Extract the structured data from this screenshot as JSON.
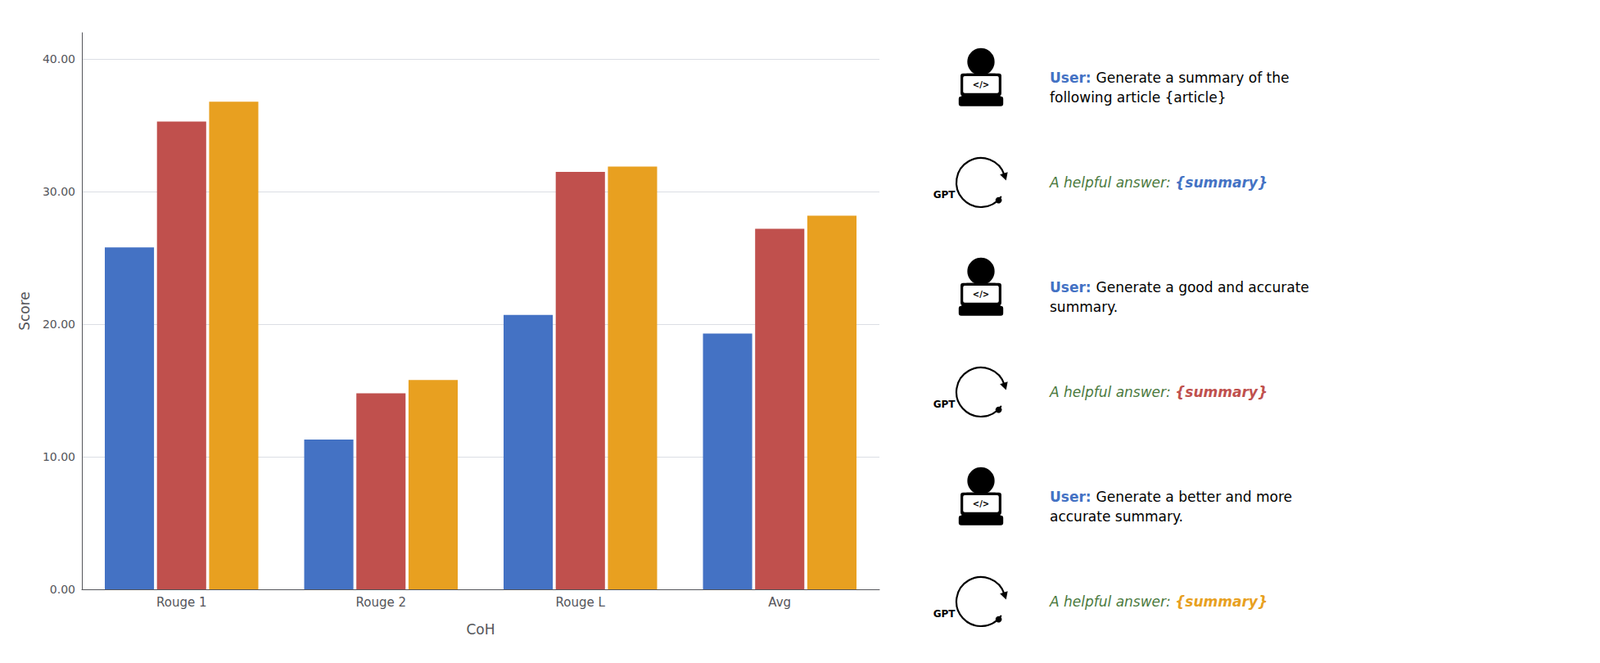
{
  "chart_data": {
    "type": "bar",
    "categories": [
      "Rouge 1",
      "Rouge 2",
      "Rouge L",
      "Avg"
    ],
    "series": [
      {
        "color": "#4472C4",
        "values": [
          25.8,
          11.3,
          20.7,
          19.3
        ]
      },
      {
        "color": "#C0504D",
        "values": [
          35.3,
          14.8,
          31.5,
          27.2
        ]
      },
      {
        "color": "#E8A020",
        "values": [
          36.8,
          15.8,
          31.9,
          28.2
        ]
      }
    ],
    "xlabel": "CoH",
    "ylabel": "Score",
    "ylim": [
      0,
      42
    ],
    "yticks": [
      {
        "value": 0,
        "label": "0.00"
      },
      {
        "value": 10,
        "label": "10.00"
      },
      {
        "value": 20,
        "label": "20.00"
      },
      {
        "value": 30,
        "label": "30.00"
      },
      {
        "value": 40,
        "label": "40.00"
      }
    ],
    "grid": true,
    "annotations": [
      {
        "icon": "</>",
        "label": "User: ",
        "label_color": "#4472C4",
        "lines": [
          "Generate a summary of the",
          "following article {article}"
        ],
        "color": "#000000"
      },
      {
        "icon": "GPT",
        "label": "A helpful answer: ",
        "label_color": "#4B7A3E",
        "lines": [
          "{summary}"
        ],
        "color": "#4472C4"
      },
      {
        "icon": "</>",
        "label": "User: ",
        "label_color": "#4472C4",
        "lines": [
          "Generate a good and accurate",
          "summary."
        ],
        "color": "#000000"
      },
      {
        "icon": "GPT",
        "label": "A helpful answer: ",
        "label_color": "#4B7A3E",
        "lines": [
          "{summary}"
        ],
        "color": "#C0504D"
      },
      {
        "icon": "</>",
        "label": "User: ",
        "label_color": "#4472C4",
        "lines": [
          "Generate a better and more",
          "accurate summary."
        ],
        "color": "#000000"
      },
      {
        "icon": "GPT",
        "label": "A helpful answer: ",
        "label_color": "#4B7A3E",
        "lines": [
          "{summary}"
        ],
        "color": "#E8A020"
      }
    ]
  }
}
